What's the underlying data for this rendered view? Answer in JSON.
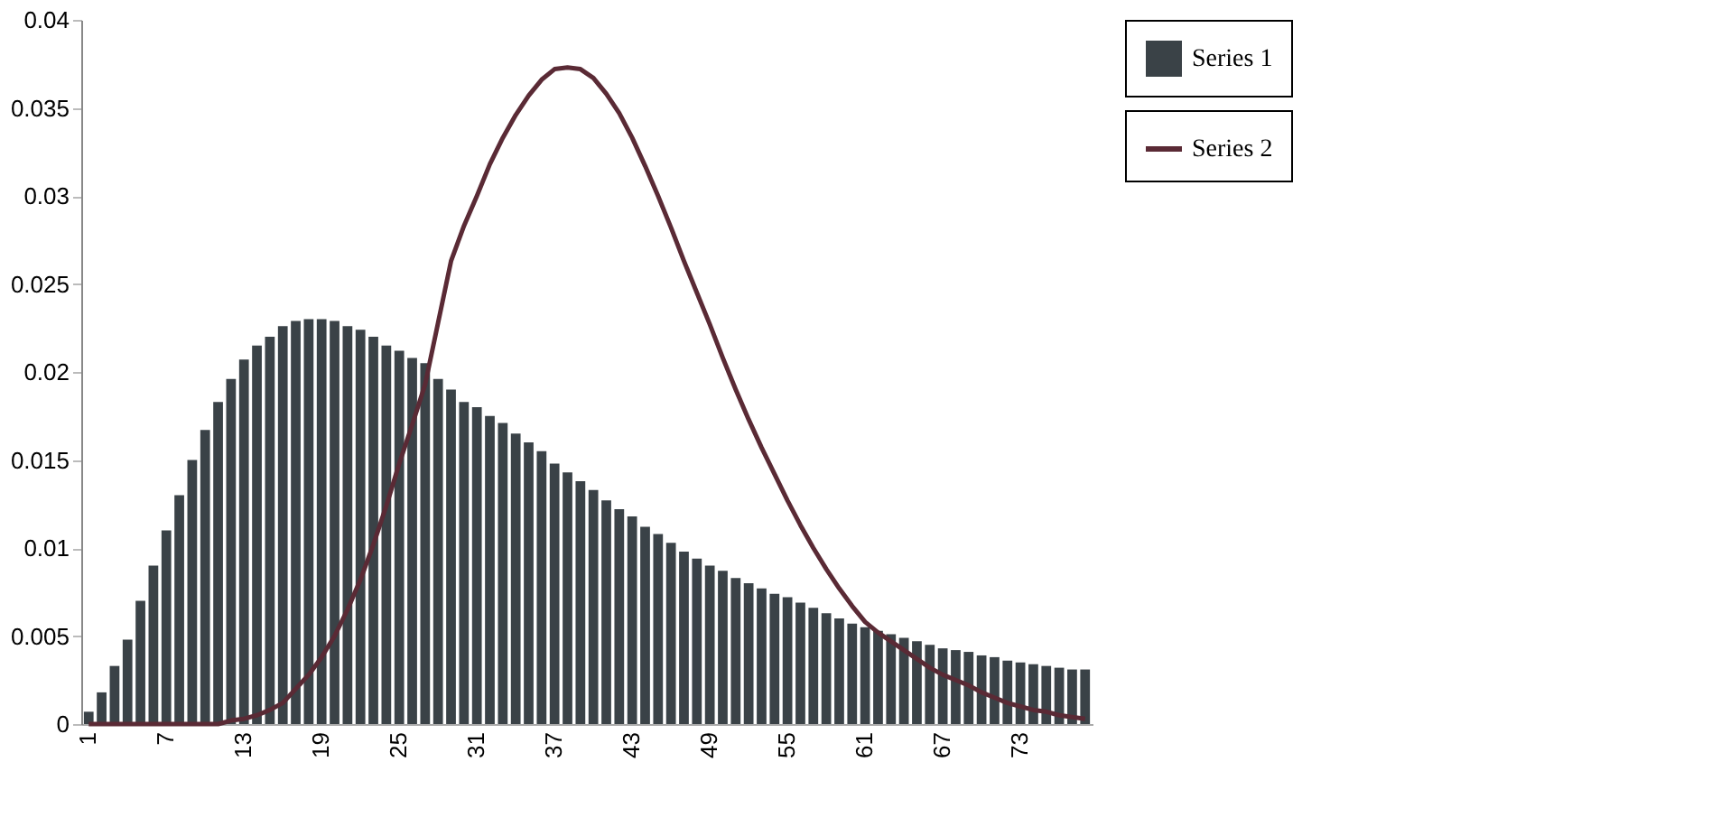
{
  "chart_data": {
    "type": "bar",
    "categories": [
      "1",
      null,
      null,
      null,
      null,
      null,
      "7",
      null,
      null,
      null,
      null,
      null,
      "13",
      null,
      null,
      null,
      null,
      null,
      "19",
      null,
      null,
      null,
      null,
      null,
      "25",
      null,
      null,
      null,
      null,
      null,
      "31",
      null,
      null,
      null,
      null,
      null,
      "37",
      null,
      null,
      null,
      null,
      null,
      "43",
      null,
      null,
      null,
      null,
      null,
      "49",
      null,
      null,
      null,
      null,
      null,
      "55",
      null,
      null,
      null,
      null,
      null,
      "61",
      null,
      null,
      null,
      null,
      null,
      "67",
      null,
      null,
      null,
      null,
      null,
      "73",
      null,
      null,
      null,
      null,
      null
    ],
    "series": [
      {
        "name": "Series 1",
        "color": "#3a4247",
        "values": [
          0.0007,
          0.0018,
          0.0033,
          0.0048,
          0.007,
          0.009,
          0.011,
          0.013,
          0.015,
          0.0167,
          0.0183,
          0.0196,
          0.0207,
          0.0215,
          0.022,
          0.0226,
          0.0229,
          0.023,
          0.023,
          0.0229,
          0.0226,
          0.0224,
          0.022,
          0.0215,
          0.0212,
          0.0208,
          0.0205,
          0.0196,
          0.019,
          0.0183,
          0.018,
          0.0175,
          0.0171,
          0.0165,
          0.016,
          0.0155,
          0.0148,
          0.0143,
          0.0138,
          0.0133,
          0.0127,
          0.0122,
          0.0118,
          0.0112,
          0.0108,
          0.0103,
          0.0098,
          0.0094,
          0.009,
          0.0087,
          0.0083,
          0.008,
          0.0077,
          0.0074,
          0.0072,
          0.0069,
          0.0066,
          0.0063,
          0.006,
          0.0057,
          0.0055,
          0.0053,
          0.0051,
          0.0049,
          0.0047,
          0.0045,
          0.0043,
          0.0042,
          0.0041,
          0.0039,
          0.0038,
          0.0036,
          0.0035,
          0.0034,
          0.0033,
          0.0032,
          0.0031,
          0.0031
        ]
      },
      {
        "name": "Series 2",
        "type": "line",
        "color": "#5a2a35",
        "values": [
          0,
          0,
          0,
          0,
          0,
          0,
          0,
          0,
          0,
          0,
          0,
          0.0002,
          0.0003,
          0.0005,
          0.0008,
          0.0012,
          0.002,
          0.0028,
          0.0038,
          0.005,
          0.0065,
          0.0082,
          0.0102,
          0.0124,
          0.0148,
          0.017,
          0.0193,
          0.0228,
          0.0263,
          0.0283,
          0.03,
          0.0318,
          0.0333,
          0.0346,
          0.0357,
          0.0366,
          0.0372,
          0.0373,
          0.0372,
          0.0367,
          0.0358,
          0.0347,
          0.0333,
          0.0317,
          0.03,
          0.0282,
          0.0263,
          0.0245,
          0.0227,
          0.0208,
          0.019,
          0.0173,
          0.0157,
          0.0142,
          0.0127,
          0.0113,
          0.01,
          0.0088,
          0.0077,
          0.0067,
          0.0058,
          0.0052,
          0.0047,
          0.0042,
          0.0037,
          0.0032,
          0.0028,
          0.0025,
          0.0022,
          0.0018,
          0.0015,
          0.0012,
          0.001,
          0.0008,
          0.0007,
          0.0005,
          0.0004,
          0.0003
        ]
      }
    ],
    "ylim": [
      0,
      0.04
    ],
    "yticks": [
      0,
      0.005,
      0.01,
      0.015,
      0.02,
      0.025,
      0.03,
      0.035,
      0.04
    ],
    "grid": false,
    "legend": "right"
  }
}
